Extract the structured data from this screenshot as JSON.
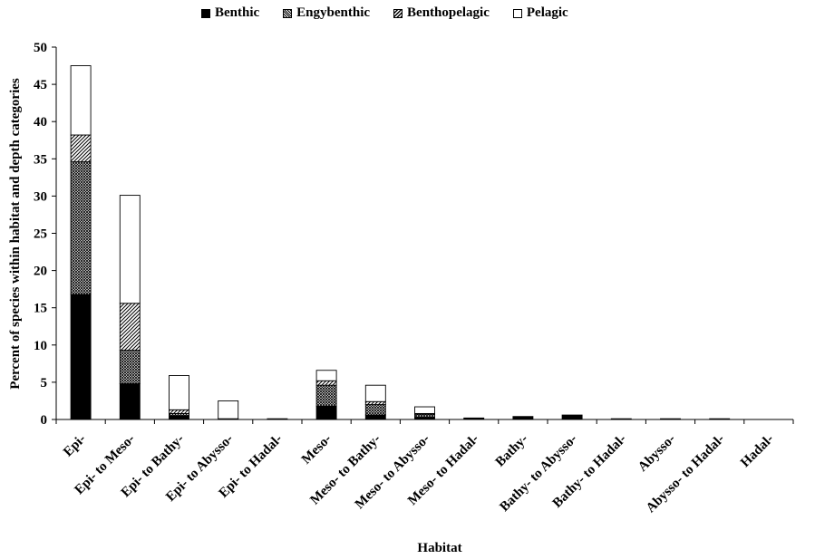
{
  "chart_data": {
    "type": "bar",
    "stacked": true,
    "xlabel": "Habitat",
    "ylabel": "Percent of species within habitat and depth categories",
    "ylim": [
      0,
      50
    ],
    "yticks": [
      0,
      5,
      10,
      15,
      20,
      25,
      30,
      35,
      40,
      45,
      50
    ],
    "legend_position": "top",
    "grid": false,
    "categories": [
      "Epi-",
      "Epi- to Meso-",
      "Epi- to Bathy-",
      "Epi- to Abysso-",
      "Epi- to Hadal-",
      "Meso-",
      "Meso- to Bathy-",
      "Meso- to Abysso-",
      "Meso- to Hadal-",
      "Bathy-",
      "Bathy- to Abysso-",
      "Bathy- to Hadal-",
      "Abysso-",
      "Abysso- to Hadal-",
      "Hadal-"
    ],
    "series": [
      {
        "name": "Benthic",
        "values": [
          16.8,
          4.8,
          0.5,
          0.1,
          0.1,
          1.8,
          0.6,
          0.3,
          0.2,
          0.4,
          0.6,
          0.1,
          0.1,
          0.1,
          0.0
        ]
      },
      {
        "name": "Engybenthic",
        "values": [
          17.8,
          4.5,
          0.3,
          0.0,
          0.0,
          2.8,
          1.4,
          0.4,
          0.0,
          0.0,
          0.0,
          0.0,
          0.0,
          0.0,
          0.0
        ]
      },
      {
        "name": "Benthopelagic",
        "values": [
          3.6,
          6.3,
          0.5,
          0.0,
          0.0,
          0.6,
          0.4,
          0.1,
          0.0,
          0.0,
          0.0,
          0.0,
          0.0,
          0.0,
          0.0
        ]
      },
      {
        "name": "Pelagic",
        "values": [
          9.3,
          14.5,
          4.6,
          2.4,
          0.0,
          1.4,
          2.2,
          0.9,
          0.0,
          0.0,
          0.0,
          0.0,
          0.0,
          0.0,
          0.0
        ]
      }
    ]
  }
}
